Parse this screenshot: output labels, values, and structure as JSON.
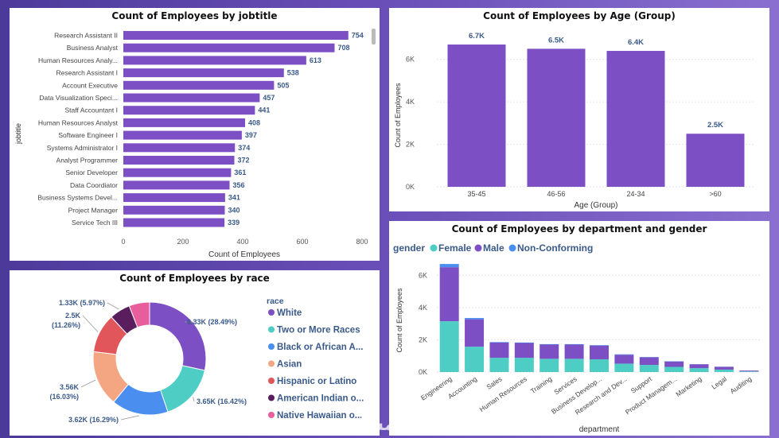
{
  "chart_data": [
    {
      "type": "bar",
      "orientation": "horizontal",
      "title": "Count of Employees by jobtitle",
      "xlabel": "Count of Employees",
      "ylabel": "jobtitle",
      "xlim": [
        0,
        800
      ],
      "xticks": [
        "0",
        "200",
        "400",
        "600",
        "800"
      ],
      "color": "#7d4fc4",
      "categories": [
        "Research Assistant II",
        "Business Analyst",
        "Human Resources Analy...",
        "Research Assistant I",
        "Account Executive",
        "Data Visualization Speci...",
        "Staff Accountant I",
        "Human Resources Analyst",
        "Software Engineer I",
        "Systems Administrator I",
        "Analyst Programmer",
        "Senior Developer",
        "Data Coordiator",
        "Business Systems Devel...",
        "Project Manager",
        "Service Tech III"
      ],
      "values": [
        754,
        708,
        613,
        538,
        505,
        457,
        441,
        408,
        397,
        374,
        372,
        361,
        356,
        341,
        340,
        339
      ],
      "data_labels": [
        "754",
        "708",
        "613",
        "538",
        "505",
        "457",
        "441",
        "408",
        "397",
        "374",
        "372",
        "361",
        "356",
        "341",
        "340",
        "339"
      ]
    },
    {
      "type": "bar",
      "title": "Count of Employees by Age (Group)",
      "xlabel": "Age (Group)",
      "ylabel": "Count of Employees",
      "ylim": [
        0,
        7000
      ],
      "yticks": [
        "0K",
        "2K",
        "4K",
        "6K"
      ],
      "color": "#7d4fc4",
      "categories": [
        "35-45",
        "46-56",
        "24-34",
        ">60"
      ],
      "values": [
        6700,
        6500,
        6400,
        2500
      ],
      "data_labels": [
        "6.7K",
        "6.5K",
        "6.4K",
        "2.5K"
      ]
    },
    {
      "type": "pie",
      "variant": "donut",
      "title": "Count of Employees by race",
      "legend_title": "race",
      "categories": [
        "White",
        "Two or More Races",
        "Black or African A...",
        "Asian",
        "Hispanic or Latino",
        "American Indian o...",
        "Native Hawaiian o..."
      ],
      "values": [
        6330,
        3650,
        3620,
        3560,
        2500,
        1330,
        1310
      ],
      "percents": [
        28.49,
        16.42,
        16.29,
        16.03,
        11.26,
        5.97,
        5.54
      ],
      "data_labels": [
        "6.33K (28.49%)",
        "3.65K (16.42%)",
        "3.62K (16.29%)",
        "3.56K (16.03%)",
        "2.5K (11.26%)",
        "1.33K (5.97%)",
        ""
      ],
      "colors": [
        "#7d4fc4",
        "#4ecdc4",
        "#4a8ef0",
        "#f4a582",
        "#e0565b",
        "#5a1e5e",
        "#e85d9c"
      ],
      "legend_placement": "right"
    },
    {
      "type": "bar",
      "variant": "stacked",
      "title": "Count of Employees by department and gender",
      "legend_title": "gender",
      "legend_placement": "top-left",
      "xlabel": "department",
      "ylabel": "Count of Employees",
      "ylim": [
        0,
        7000
      ],
      "yticks": [
        "0K",
        "2K",
        "4K",
        "6K"
      ],
      "categories": [
        "Engineering",
        "Accounting",
        "Sales",
        "Human Resources",
        "Training",
        "Services",
        "Business Develop...",
        "Research and Dev...",
        "Support",
        "Product Managem...",
        "Marketing",
        "Legal",
        "Auditing"
      ],
      "series": [
        {
          "name": "Female",
          "color": "#4ecdc4",
          "values": [
            3150,
            1570,
            880,
            880,
            820,
            820,
            790,
            520,
            440,
            320,
            240,
            150,
            40
          ]
        },
        {
          "name": "Male",
          "color": "#7d4fc4",
          "values": [
            3350,
            1700,
            950,
            920,
            880,
            880,
            850,
            550,
            470,
            330,
            240,
            170,
            50
          ]
        },
        {
          "name": "Non-Conforming",
          "color": "#4a8ef0",
          "values": [
            200,
            80,
            30,
            30,
            30,
            30,
            30,
            30,
            20,
            20,
            10,
            10,
            0
          ]
        }
      ]
    }
  ]
}
